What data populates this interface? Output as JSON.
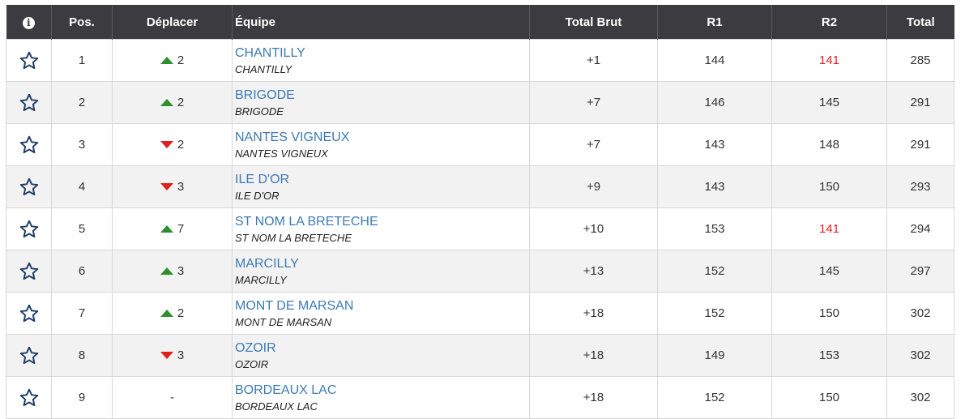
{
  "header": {
    "info": "i",
    "pos": "Pos.",
    "move": "Déplacer",
    "team": "Équipe",
    "total_brut": "Total Brut",
    "r1": "R1",
    "r2": "R2",
    "total": "Total"
  },
  "colors": {
    "header_bg": "#3c3c40",
    "link": "#3d7ab3",
    "up": "#2f8f2f",
    "down": "#e02020",
    "highlight": "#e02020"
  },
  "rows": [
    {
      "pos": "1",
      "dir": "up",
      "move": "2",
      "team": "CHANTILLY",
      "club": "CHANTILLY",
      "brut": "+1",
      "r1": "144",
      "r2": "141",
      "r2_red": true,
      "total": "285"
    },
    {
      "pos": "2",
      "dir": "up",
      "move": "2",
      "team": "BRIGODE",
      "club": "BRIGODE",
      "brut": "+7",
      "r1": "146",
      "r2": "145",
      "r2_red": false,
      "total": "291"
    },
    {
      "pos": "3",
      "dir": "down",
      "move": "2",
      "team": "NANTES VIGNEUX",
      "club": "NANTES VIGNEUX",
      "brut": "+7",
      "r1": "143",
      "r2": "148",
      "r2_red": false,
      "total": "291"
    },
    {
      "pos": "4",
      "dir": "down",
      "move": "3",
      "team": "ILE D'OR",
      "club": "ILE D'OR",
      "brut": "+9",
      "r1": "143",
      "r2": "150",
      "r2_red": false,
      "total": "293"
    },
    {
      "pos": "5",
      "dir": "up",
      "move": "7",
      "team": "ST NOM LA BRETECHE",
      "club": "ST NOM LA BRETECHE",
      "brut": "+10",
      "r1": "153",
      "r2": "141",
      "r2_red": true,
      "total": "294"
    },
    {
      "pos": "6",
      "dir": "up",
      "move": "3",
      "team": "MARCILLY",
      "club": "MARCILLY",
      "brut": "+13",
      "r1": "152",
      "r2": "145",
      "r2_red": false,
      "total": "297"
    },
    {
      "pos": "7",
      "dir": "up",
      "move": "2",
      "team": "MONT DE MARSAN",
      "club": "MONT DE MARSAN",
      "brut": "+18",
      "r1": "152",
      "r2": "150",
      "r2_red": false,
      "total": "302"
    },
    {
      "pos": "8",
      "dir": "down",
      "move": "3",
      "team": "OZOIR",
      "club": "OZOIR",
      "brut": "+18",
      "r1": "149",
      "r2": "153",
      "r2_red": false,
      "total": "302"
    },
    {
      "pos": "9",
      "dir": "none",
      "move": "-",
      "team": "BORDEAUX LAC",
      "club": "BORDEAUX LAC",
      "brut": "+18",
      "r1": "152",
      "r2": "150",
      "r2_red": false,
      "total": "302"
    }
  ]
}
